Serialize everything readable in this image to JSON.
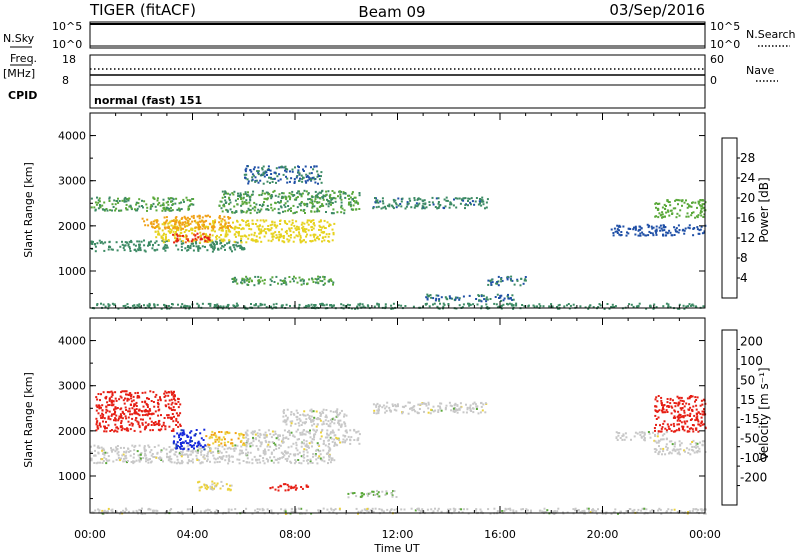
{
  "header": {
    "radar": "TIGER (fitACF)",
    "beam": "Beam 09",
    "date": "03/Sep/2016"
  },
  "nsky": {
    "label": "N.Sky",
    "ticks": [
      "10^5",
      "10^0"
    ],
    "right_ticks": [
      "10^5",
      "10^0"
    ],
    "right_label": "N.Search"
  },
  "freq": {
    "label_lines": [
      "Freq.",
      "[MHz]"
    ],
    "ticks": [
      "18",
      "8"
    ],
    "right_ticks": [
      "60",
      "0"
    ],
    "right_label": "Nave"
  },
  "cpid": {
    "label": "CPID",
    "value": "normal (fast) 151"
  },
  "colors": {
    "power": [
      "#1428dc",
      "#1f4fa6",
      "#3c8a64",
      "#5aa83a",
      "#e6d21e",
      "#f0a014",
      "#f06414",
      "#e61e14"
    ],
    "velocity": [
      "#e61e14",
      "#f06414",
      "#f0a014",
      "#ebd23c",
      "#c8c8c8",
      "#5aa83a",
      "#3c8a64",
      "#1f4fa6",
      "#1428dc"
    ]
  },
  "chart_data": [
    {
      "type": "heatmap",
      "name": "power",
      "xlabel": "",
      "ylabel": "Slant Range [km]",
      "x_ticks": [
        "00:00",
        "04:00",
        "08:00",
        "12:00",
        "16:00",
        "20:00",
        "00:00"
      ],
      "y_ticks": [
        "1000",
        "2000",
        "3000",
        "4000"
      ],
      "ylim": [
        180,
        4500
      ],
      "colorbar": {
        "label": "Power [dB]",
        "ticks": [
          "4",
          "8",
          "12",
          "16",
          "20",
          "24",
          "28"
        ],
        "range": [
          0,
          32
        ]
      },
      "bands": [
        {
          "t0": 0.0,
          "t1": 6.0,
          "r0": 1450,
          "r1": 1700,
          "value": 10
        },
        {
          "t0": 2.5,
          "t1": 9.5,
          "r0": 1650,
          "r1": 2150,
          "value": 18
        },
        {
          "t0": 3.2,
          "t1": 4.8,
          "r0": 1650,
          "r1": 1850,
          "value": 29
        },
        {
          "t0": 0.0,
          "t1": 4.0,
          "r0": 2350,
          "r1": 2650,
          "value": 12
        },
        {
          "t0": 2.0,
          "t1": 5.5,
          "r0": 1950,
          "r1": 2250,
          "value": 22
        },
        {
          "t0": 5.0,
          "t1": 10.5,
          "r0": 2300,
          "r1": 2800,
          "value": 12
        },
        {
          "t0": 6.0,
          "t1": 9.0,
          "r0": 2950,
          "r1": 3350,
          "value": 8
        },
        {
          "t0": 11.0,
          "t1": 15.5,
          "r0": 2400,
          "r1": 2650,
          "value": 9
        },
        {
          "t0": 5.5,
          "t1": 9.5,
          "r0": 700,
          "r1": 900,
          "value": 12
        },
        {
          "t0": 13.0,
          "t1": 16.5,
          "r0": 350,
          "r1": 500,
          "value": 8
        },
        {
          "t0": 15.5,
          "t1": 17.0,
          "r0": 700,
          "r1": 900,
          "value": 8
        },
        {
          "t0": 20.3,
          "t1": 24.0,
          "r0": 1800,
          "r1": 2050,
          "value": 6
        },
        {
          "t0": 22.0,
          "t1": 24.0,
          "r0": 2200,
          "r1": 2600,
          "value": 14
        },
        {
          "t0": 0.0,
          "t1": 24.0,
          "r0": 180,
          "r1": 300,
          "value": 10
        }
      ]
    },
    {
      "type": "heatmap",
      "name": "velocity",
      "xlabel": "Time UT",
      "ylabel": "Slant Range [km]",
      "x_ticks": [
        "00:00",
        "04:00",
        "08:00",
        "12:00",
        "16:00",
        "20:00",
        "00:00"
      ],
      "y_ticks": [
        "1000",
        "2000",
        "3000",
        "4000"
      ],
      "ylim": [
        180,
        4500
      ],
      "colorbar": {
        "label": "Velocity [m s⁻¹]",
        "ticks": [
          "200",
          "100",
          "50",
          "15",
          "-15",
          "-50",
          "-100",
          "-200"
        ],
        "range": [
          -250,
          250
        ]
      },
      "bands": [
        {
          "t0": 0.0,
          "t1": 9.5,
          "r0": 1300,
          "r1": 1700,
          "value": 0
        },
        {
          "t0": 6.0,
          "t1": 10.5,
          "r0": 1700,
          "r1": 2050,
          "value": 0
        },
        {
          "t0": 0.2,
          "t1": 3.5,
          "r0": 2000,
          "r1": 2900,
          "value": -230
        },
        {
          "t0": 3.2,
          "t1": 4.5,
          "r0": 1600,
          "r1": 2050,
          "value": 220
        },
        {
          "t0": 4.5,
          "t1": 6.0,
          "r0": 1700,
          "r1": 2000,
          "value": -80
        },
        {
          "t0": 7.5,
          "t1": 10.0,
          "r0": 2100,
          "r1": 2500,
          "value": 0
        },
        {
          "t0": 11.0,
          "t1": 15.5,
          "r0": 2400,
          "r1": 2650,
          "value": 0
        },
        {
          "t0": 4.0,
          "t1": 5.5,
          "r0": 700,
          "r1": 900,
          "value": -40
        },
        {
          "t0": 7.0,
          "t1": 8.5,
          "r0": 700,
          "r1": 850,
          "value": -220
        },
        {
          "t0": 10.0,
          "t1": 12.0,
          "r0": 550,
          "r1": 700,
          "value": 30
        },
        {
          "t0": 20.5,
          "t1": 22.5,
          "r0": 1800,
          "r1": 2000,
          "value": 0
        },
        {
          "t0": 22.0,
          "t1": 24.0,
          "r0": 2000,
          "r1": 2800,
          "value": -230
        },
        {
          "t0": 22.0,
          "t1": 24.0,
          "r0": 1500,
          "r1": 1800,
          "value": 0
        },
        {
          "t0": 0.0,
          "t1": 24.0,
          "r0": 180,
          "r1": 300,
          "value": 0
        }
      ]
    }
  ]
}
